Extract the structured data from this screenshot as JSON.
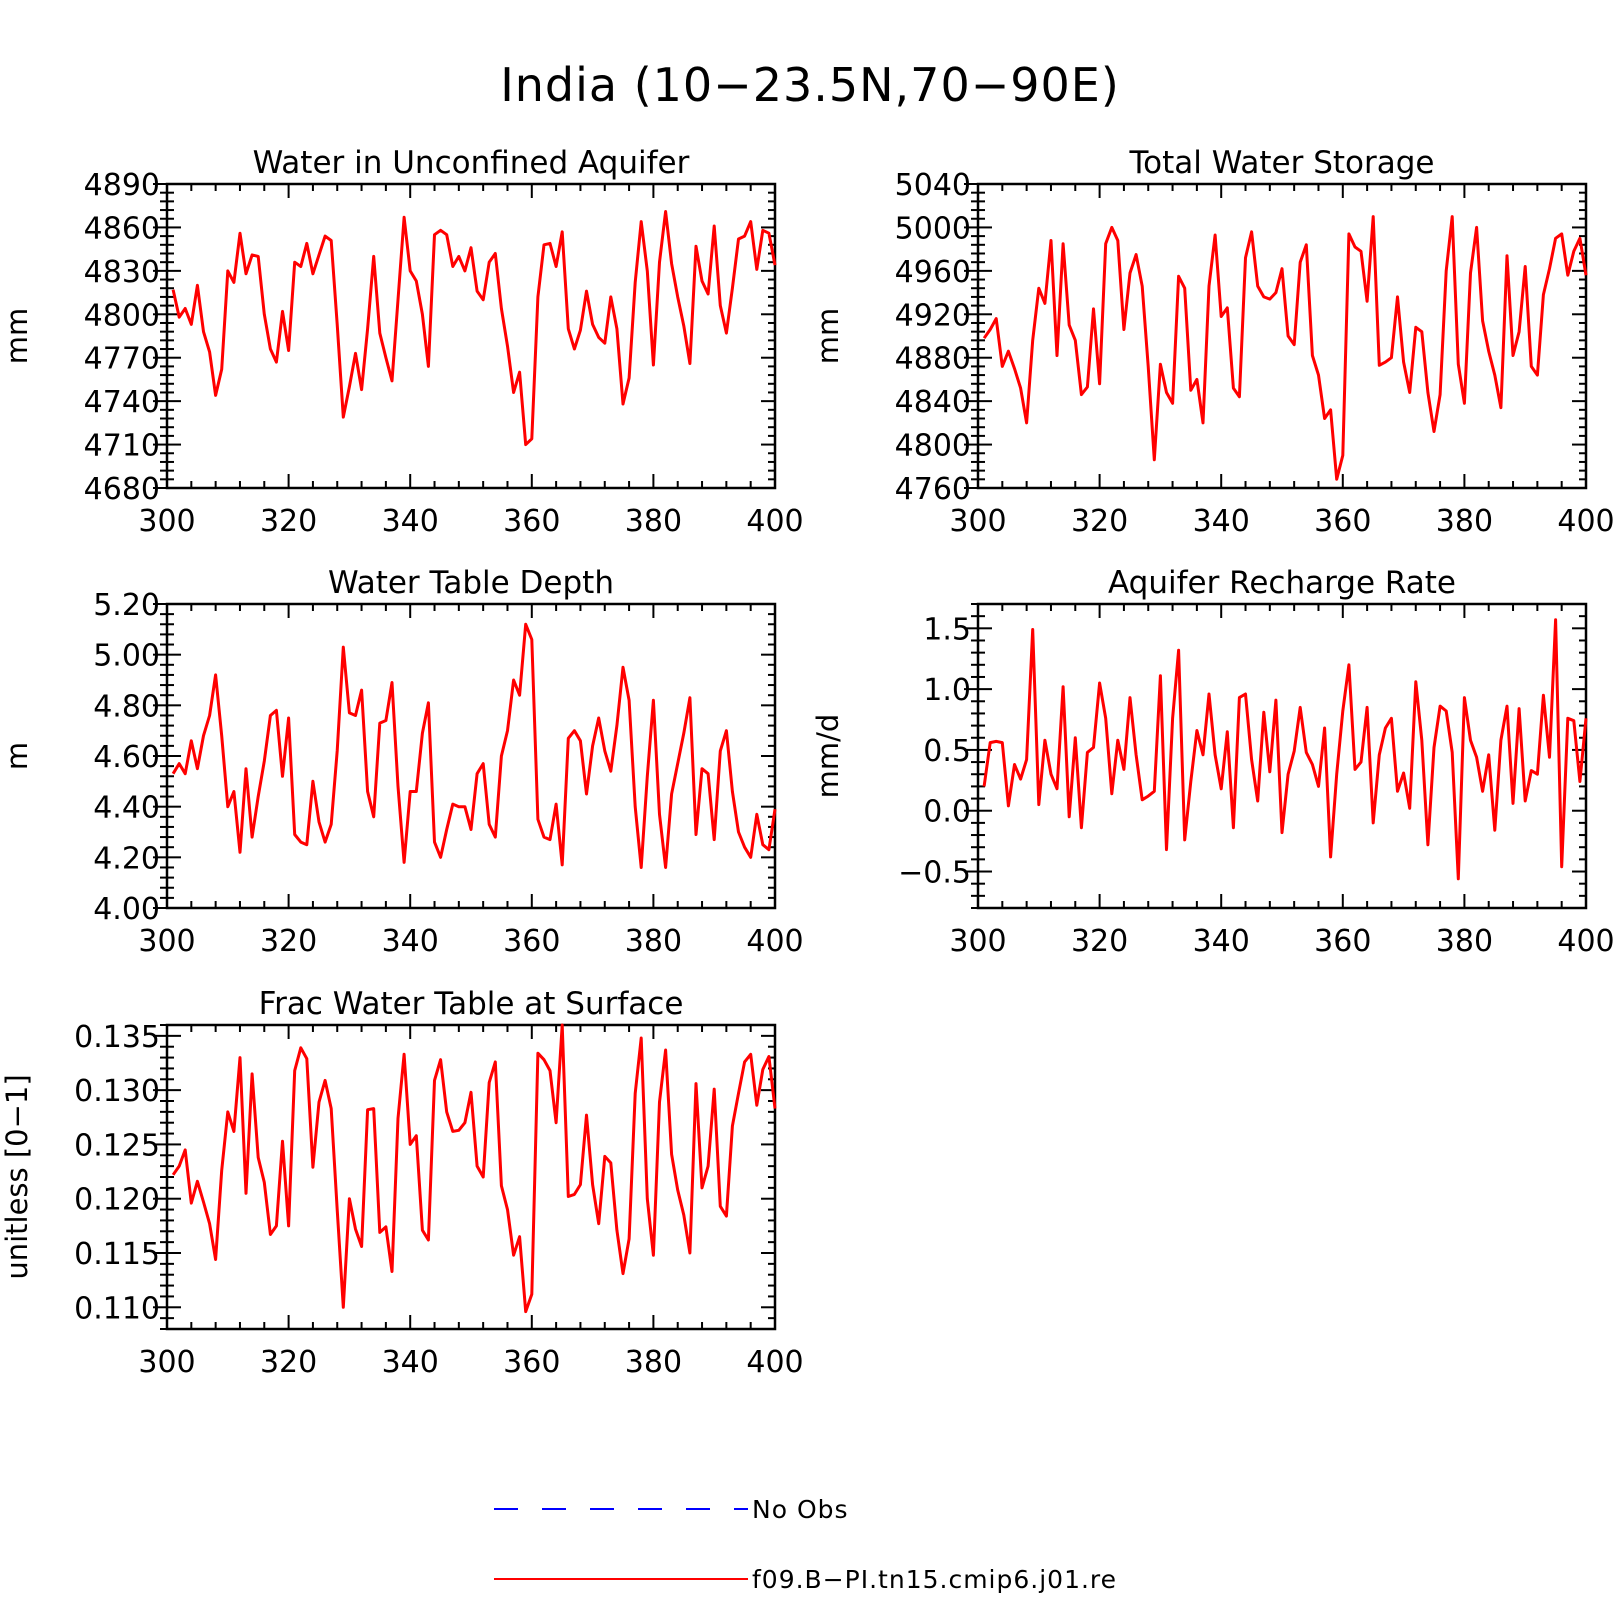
{
  "title": "India (10−23.5N,70−90E)",
  "colors": {
    "model": "#ff0000",
    "obs": "#0000ff",
    "axes": "#000000"
  },
  "legend": [
    {
      "label": "No Obs",
      "color": "#0000ff",
      "style": "dashed"
    },
    {
      "label": "f09.B−PI.tn15.cmip6.j01.re",
      "color": "#ff0000",
      "style": "solid"
    }
  ],
  "chart_data": [
    {
      "type": "line",
      "title": "Water in Unconfined Aquifer",
      "ylabel": "mm",
      "xlim": [
        300,
        400
      ],
      "ylim": [
        4680,
        4890
      ],
      "xticks": [
        "300",
        "320",
        "340",
        "360",
        "380",
        "400"
      ],
      "yticks": [
        "4680",
        "4710",
        "4740",
        "4770",
        "4800",
        "4830",
        "4860",
        "4890"
      ],
      "x_start": 301,
      "series": [
        {
          "color": "#ff0000",
          "values": [
            4817,
            4798,
            4804,
            4793,
            4820,
            4788,
            4774,
            4744,
            4762,
            4830,
            4822,
            4856,
            4828,
            4841,
            4840,
            4800,
            4776,
            4767,
            4802,
            4775,
            4836,
            4833,
            4849,
            4828,
            4841,
            4854,
            4851,
            4793,
            4729,
            4750,
            4773,
            4748,
            4790,
            4840,
            4787,
            4770,
            4754,
            4810,
            4867,
            4830,
            4823,
            4800,
            4764,
            4855,
            4858,
            4855,
            4833,
            4840,
            4830,
            4846,
            4816,
            4810,
            4836,
            4842,
            4804,
            4778,
            4746,
            4760,
            4710,
            4714,
            4812,
            4848,
            4849,
            4833,
            4857,
            4790,
            4776,
            4789,
            4816,
            4793,
            4784,
            4780,
            4812,
            4790,
            4738,
            4756,
            4822,
            4864,
            4830,
            4765,
            4836,
            4871,
            4835,
            4812,
            4792,
            4766,
            4847,
            4823,
            4814,
            4861,
            4806,
            4787,
            4818,
            4852,
            4854,
            4864,
            4831,
            4858,
            4856,
            4834
          ]
        }
      ]
    },
    {
      "type": "line",
      "title": "Total Water Storage",
      "ylabel": "mm",
      "xlim": [
        300,
        400
      ],
      "ylim": [
        4760,
        5040
      ],
      "xticks": [
        "300",
        "320",
        "340",
        "360",
        "380",
        "400"
      ],
      "yticks": [
        "4760",
        "4800",
        "4840",
        "4880",
        "4920",
        "4960",
        "5000",
        "5040"
      ],
      "x_start": 301,
      "series": [
        {
          "color": "#ff0000",
          "values": [
            4898,
            4906,
            4916,
            4872,
            4886,
            4870,
            4852,
            4820,
            4896,
            4944,
            4930,
            4988,
            4882,
            4985,
            4910,
            4896,
            4846,
            4853,
            4925,
            4856,
            4985,
            5000,
            4988,
            4906,
            4958,
            4975,
            4946,
            4872,
            4786,
            4874,
            4848,
            4838,
            4955,
            4944,
            4850,
            4860,
            4820,
            4946,
            4993,
            4918,
            4926,
            4852,
            4844,
            4972,
            4996,
            4946,
            4936,
            4934,
            4940,
            4962,
            4900,
            4892,
            4968,
            4984,
            4882,
            4864,
            4824,
            4832,
            4768,
            4790,
            4994,
            4982,
            4978,
            4932,
            5010,
            4873,
            4876,
            4880,
            4936,
            4876,
            4848,
            4908,
            4904,
            4848,
            4812,
            4846,
            4960,
            5010,
            4874,
            4838,
            4958,
            5000,
            4914,
            4886,
            4864,
            4834,
            4974,
            4882,
            4904,
            4964,
            4872,
            4864,
            4938,
            4962,
            4990,
            4994,
            4956,
            4978,
            4990,
            4956
          ]
        }
      ]
    },
    {
      "type": "line",
      "title": "Water Table Depth",
      "ylabel": "m",
      "xlim": [
        300,
        400
      ],
      "ylim": [
        4.0,
        5.2
      ],
      "xticks": [
        "300",
        "320",
        "340",
        "360",
        "380",
        "400"
      ],
      "yticks": [
        "4.00",
        "4.20",
        "4.40",
        "4.60",
        "4.80",
        "5.00",
        "5.20"
      ],
      "x_start": 301,
      "series": [
        {
          "color": "#ff0000",
          "values": [
            4.53,
            4.57,
            4.53,
            4.66,
            4.55,
            4.68,
            4.76,
            4.92,
            4.68,
            4.4,
            4.46,
            4.22,
            4.55,
            4.28,
            4.44,
            4.58,
            4.76,
            4.78,
            4.52,
            4.75,
            4.29,
            4.26,
            4.25,
            4.5,
            4.34,
            4.26,
            4.33,
            4.62,
            5.03,
            4.77,
            4.76,
            4.86,
            4.46,
            4.36,
            4.73,
            4.74,
            4.89,
            4.48,
            4.18,
            4.46,
            4.46,
            4.69,
            4.81,
            4.26,
            4.2,
            4.31,
            4.41,
            4.4,
            4.4,
            4.31,
            4.53,
            4.57,
            4.33,
            4.28,
            4.6,
            4.7,
            4.9,
            4.84,
            5.12,
            5.06,
            4.35,
            4.28,
            4.27,
            4.41,
            4.17,
            4.67,
            4.7,
            4.66,
            4.45,
            4.64,
            4.75,
            4.62,
            4.54,
            4.72,
            4.95,
            4.82,
            4.4,
            4.16,
            4.52,
            4.82,
            4.37,
            4.16,
            4.45,
            4.57,
            4.69,
            4.83,
            4.29,
            4.55,
            4.53,
            4.27,
            4.62,
            4.7,
            4.46,
            4.3,
            4.24,
            4.2,
            4.37,
            4.25,
            4.23,
            4.39
          ]
        }
      ]
    },
    {
      "type": "line",
      "title": "Aquifer Recharge Rate",
      "ylabel": "mm/d",
      "xlim": [
        300,
        400
      ],
      "ylim": [
        -0.8,
        1.7
      ],
      "xticks": [
        "300",
        "320",
        "340",
        "360",
        "380",
        "400"
      ],
      "yticks": [
        "−0.5",
        "0.0",
        "0.5",
        "1.0",
        "1.5"
      ],
      "ytick_values": [
        -0.5,
        0.0,
        0.5,
        1.0,
        1.5
      ],
      "x_start": 301,
      "series": [
        {
          "color": "#ff0000",
          "values": [
            0.2,
            0.56,
            0.57,
            0.56,
            0.04,
            0.38,
            0.26,
            0.42,
            1.49,
            0.05,
            0.58,
            0.3,
            0.18,
            1.02,
            -0.05,
            0.6,
            -0.14,
            0.48,
            0.52,
            1.05,
            0.76,
            0.14,
            0.58,
            0.34,
            0.93,
            0.46,
            0.09,
            0.12,
            0.16,
            1.11,
            -0.32,
            0.76,
            1.32,
            -0.24,
            0.24,
            0.66,
            0.46,
            0.96,
            0.46,
            0.18,
            0.65,
            -0.14,
            0.93,
            0.96,
            0.42,
            0.08,
            0.81,
            0.32,
            0.91,
            -0.18,
            0.3,
            0.49,
            0.85,
            0.48,
            0.38,
            0.2,
            0.68,
            -0.38,
            0.3,
            0.82,
            1.2,
            0.34,
            0.4,
            0.85,
            -0.1,
            0.46,
            0.68,
            0.76,
            0.16,
            0.31,
            0.02,
            1.06,
            0.58,
            -0.28,
            0.52,
            0.86,
            0.82,
            0.48,
            -0.56,
            0.93,
            0.58,
            0.44,
            0.16,
            0.46,
            -0.16,
            0.58,
            0.86,
            0.06,
            0.84,
            0.08,
            0.33,
            0.3,
            0.95,
            0.44,
            1.57,
            -0.46,
            0.76,
            0.74,
            0.24,
            0.76
          ]
        }
      ]
    },
    {
      "type": "line",
      "title": "Frac Water Table at Surface",
      "ylabel": "unitless [0−1]",
      "xlim": [
        300,
        400
      ],
      "ylim": [
        0.108,
        0.136
      ],
      "xticks": [
        "300",
        "320",
        "340",
        "360",
        "380",
        "400"
      ],
      "yticks": [
        "0.110",
        "0.115",
        "0.120",
        "0.125",
        "0.130",
        "0.135"
      ],
      "ytick_values": [
        0.11,
        0.115,
        0.12,
        0.125,
        0.13,
        0.135
      ],
      "x_start": 301,
      "series": [
        {
          "color": "#ff0000",
          "values": [
            0.1222,
            0.123,
            0.1245,
            0.1196,
            0.1216,
            0.1197,
            0.1177,
            0.1144,
            0.1226,
            0.128,
            0.1262,
            0.133,
            0.1205,
            0.1315,
            0.1238,
            0.1215,
            0.1167,
            0.1175,
            0.1253,
            0.1175,
            0.1318,
            0.1339,
            0.1329,
            0.1229,
            0.1289,
            0.1309,
            0.1283,
            0.119,
            0.11,
            0.12,
            0.1172,
            0.1156,
            0.1282,
            0.1283,
            0.1169,
            0.1174,
            0.1133,
            0.1274,
            0.1333,
            0.125,
            0.1258,
            0.1171,
            0.1162,
            0.1309,
            0.1328,
            0.128,
            0.1262,
            0.1263,
            0.127,
            0.1298,
            0.123,
            0.122,
            0.1307,
            0.1326,
            0.1212,
            0.119,
            0.1148,
            0.1165,
            0.1096,
            0.1112,
            0.1334,
            0.1328,
            0.1318,
            0.127,
            0.136,
            0.1202,
            0.1204,
            0.1213,
            0.1277,
            0.1213,
            0.1177,
            0.1239,
            0.1233,
            0.1171,
            0.1131,
            0.1163,
            0.1297,
            0.1348,
            0.12,
            0.1148,
            0.1289,
            0.1337,
            0.1241,
            0.1208,
            0.1185,
            0.115,
            0.1306,
            0.121,
            0.123,
            0.1301,
            0.1193,
            0.1184,
            0.1267,
            0.1297,
            0.1326,
            0.1333,
            0.1286,
            0.1319,
            0.1331,
            0.1283
          ]
        }
      ]
    }
  ]
}
